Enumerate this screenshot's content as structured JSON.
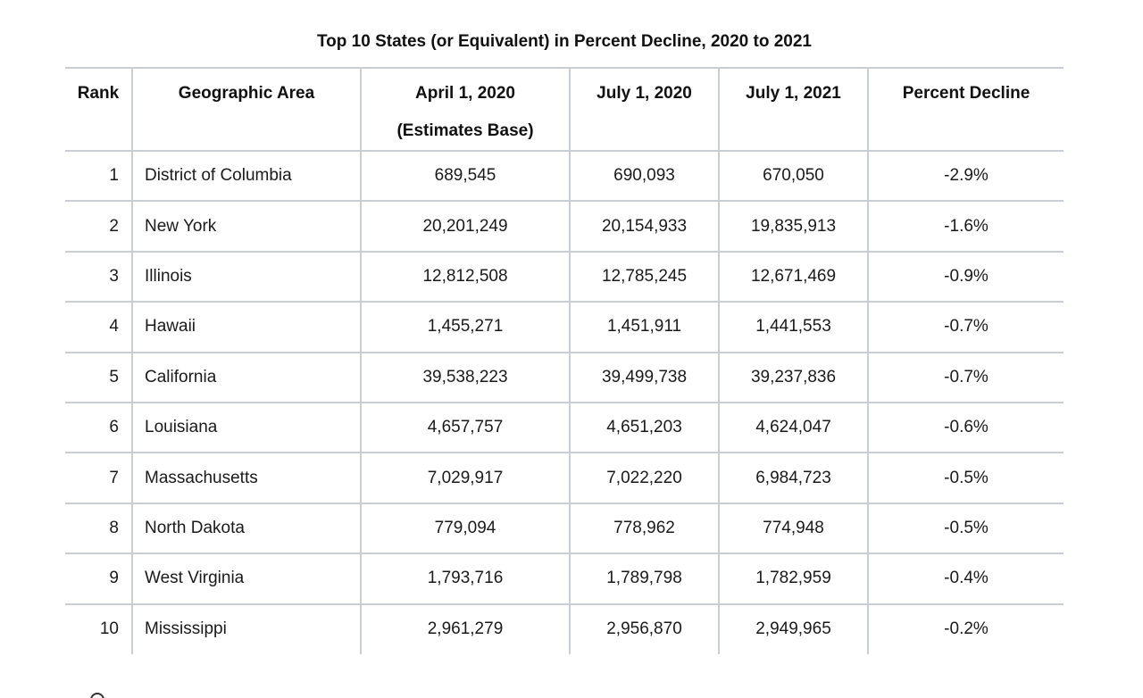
{
  "title": "Top 10 States (or Equivalent) in Percent Decline, 2020 to 2021",
  "headers": {
    "rank": "Rank",
    "area": "Geographic Area",
    "april_2020_line1": "April 1, 2020",
    "april_2020_line2": "(Estimates Base)",
    "july_2020": "July 1, 2020",
    "july_2021": "July 1, 2021",
    "percent_decline": "Percent Decline"
  },
  "rows": [
    {
      "rank": "1",
      "area": "District of Columbia",
      "april_2020": "689,545",
      "july_2020": "690,093",
      "july_2021": "670,050",
      "percent_decline": "-2.9%"
    },
    {
      "rank": "2",
      "area": "New York",
      "april_2020": "20,201,249",
      "july_2020": "20,154,933",
      "july_2021": "19,835,913",
      "percent_decline": "-1.6%"
    },
    {
      "rank": "3",
      "area": "Illinois",
      "april_2020": "12,812,508",
      "july_2020": "12,785,245",
      "july_2021": "12,671,469",
      "percent_decline": "-0.9%"
    },
    {
      "rank": "4",
      "area": "Hawaii",
      "april_2020": "1,455,271",
      "july_2020": "1,451,911",
      "july_2021": "1,441,553",
      "percent_decline": "-0.7%"
    },
    {
      "rank": "5",
      "area": "California",
      "april_2020": "39,538,223",
      "july_2020": "39,499,738",
      "july_2021": "39,237,836",
      "percent_decline": "-0.7%"
    },
    {
      "rank": "6",
      "area": "Louisiana",
      "april_2020": "4,657,757",
      "july_2020": "4,651,203",
      "july_2021": "4,624,047",
      "percent_decline": "-0.6%"
    },
    {
      "rank": "7",
      "area": "Massachusetts",
      "april_2020": "7,029,917",
      "july_2020": "7,022,220",
      "july_2021": "6,984,723",
      "percent_decline": "-0.5%"
    },
    {
      "rank": "8",
      "area": "North Dakota",
      "april_2020": "779,094",
      "july_2020": "778,962",
      "july_2021": "774,948",
      "percent_decline": "-0.5%"
    },
    {
      "rank": "9",
      "area": "West Virginia",
      "april_2020": "1,793,716",
      "july_2020": "1,789,798",
      "july_2021": "1,782,959",
      "percent_decline": "-0.4%"
    },
    {
      "rank": "10",
      "area": "Mississippi",
      "april_2020": "2,961,279",
      "july_2020": "2,956,870",
      "july_2021": "2,949,965",
      "percent_decline": "-0.2%"
    }
  ],
  "colors": {
    "grid_line": "#c9ced4",
    "text": "#1a1a1a"
  }
}
